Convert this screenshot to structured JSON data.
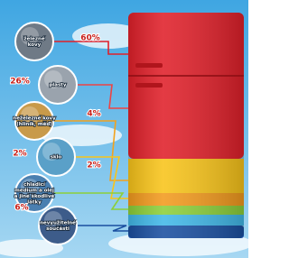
{
  "items": [
    {
      "label": [
        "železné",
        "kovy"
      ],
      "percent": "60%"
    },
    {
      "label": [
        "plasty"
      ],
      "percent": "26%"
    },
    {
      "label": [
        "neželezné kovy",
        "(hliník, měď)"
      ],
      "percent": "4%"
    },
    {
      "label": [
        "sklo"
      ],
      "percent": "2%"
    },
    {
      "label": [
        "chladicí",
        "medium a olej",
        "a jiné škodlivé",
        "látky"
      ],
      "percent": "2%"
    },
    {
      "label": [
        "nevyužitelné",
        "součásti"
      ],
      "percent": "6%"
    }
  ]
}
